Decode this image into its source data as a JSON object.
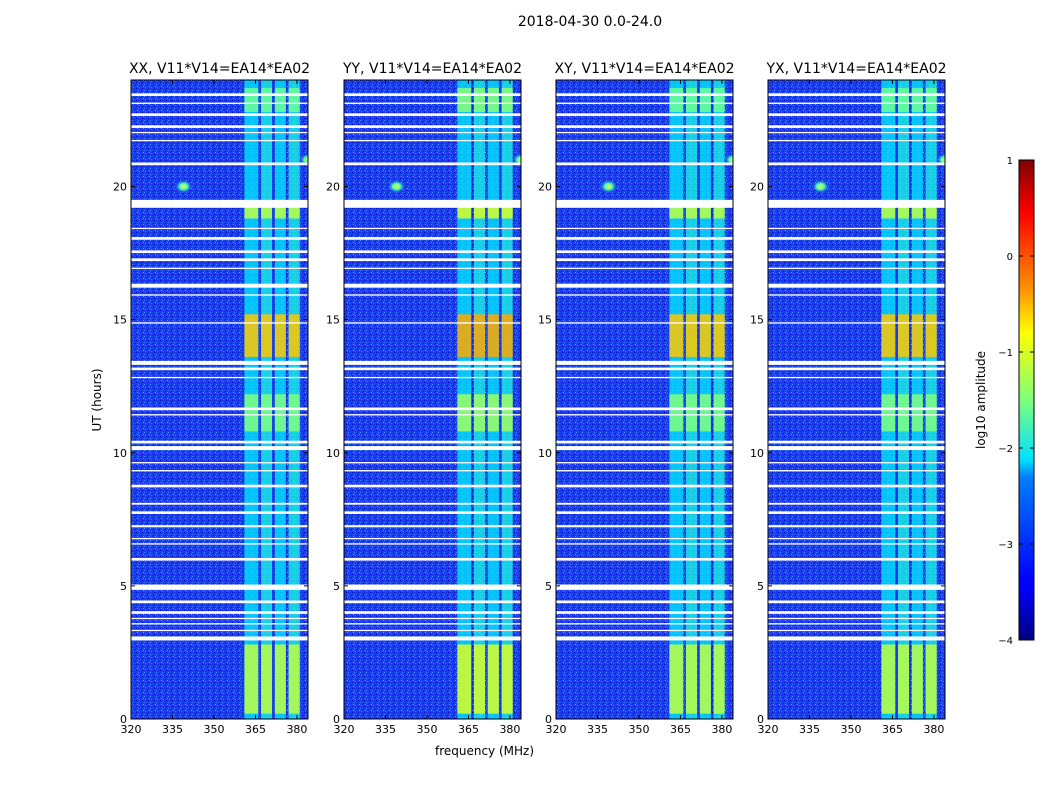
{
  "suptitle": "2018-04-30 0.0-24.0",
  "colormap": "jet",
  "chart_data": [
    {
      "type": "heatmap",
      "title": "XX, V11*V14=EA14*EA02",
      "xlabel": "",
      "ylabel": "UT (hours)",
      "xlim": [
        320,
        384
      ],
      "ylim": [
        0,
        24
      ],
      "xticks": [
        320,
        335,
        350,
        365,
        380
      ],
      "yticks": [
        0,
        5,
        10,
        15,
        20
      ],
      "ylabel_shown": true
    },
    {
      "type": "heatmap",
      "title": "YY, V11*V14=EA14*EA02",
      "xlabel": "frequency (MHz)",
      "ylabel": "",
      "xlim": [
        320,
        384
      ],
      "ylim": [
        0,
        24
      ],
      "xticks": [
        320,
        335,
        350,
        365,
        380
      ],
      "yticks": [
        0,
        5,
        10,
        15,
        20
      ],
      "ylabel_shown": false
    },
    {
      "type": "heatmap",
      "title": "XY, V11*V14=EA14*EA02",
      "xlabel": "",
      "ylabel": "",
      "xlim": [
        320,
        384
      ],
      "ylim": [
        0,
        24
      ],
      "xticks": [
        320,
        335,
        350,
        365,
        380
      ],
      "yticks": [
        0,
        5,
        10,
        15,
        20
      ],
      "ylabel_shown": false
    },
    {
      "type": "heatmap",
      "title": "YX, V11*V14=EA14*EA02",
      "xlabel": "",
      "ylabel": "",
      "xlim": [
        320,
        384
      ],
      "ylim": [
        0,
        24
      ],
      "xticks": [
        320,
        335,
        350,
        365,
        380
      ],
      "yticks": [
        0,
        5,
        10,
        15,
        20
      ],
      "ylabel_shown": false
    }
  ],
  "colorbar": {
    "label": "log10 amplitude",
    "range": [
      -4,
      1
    ],
    "ticks": [
      -4,
      -3,
      -2,
      -1,
      0,
      1
    ],
    "tick_labels": [
      "−4",
      "−3",
      "−2",
      "−1",
      "0",
      "1"
    ]
  },
  "features": {
    "flag_gaps_ut": [
      [
        2.95,
        3.1
      ],
      [
        3.3,
        3.35
      ],
      [
        3.55,
        3.6
      ],
      [
        3.75,
        3.8
      ],
      [
        3.95,
        4.05
      ],
      [
        4.35,
        4.45
      ],
      [
        4.85,
        5.05
      ],
      [
        5.95,
        6.05
      ],
      [
        6.55,
        6.6
      ],
      [
        6.75,
        6.8
      ],
      [
        7.2,
        7.28
      ],
      [
        7.7,
        7.8
      ],
      [
        8.05,
        8.12
      ],
      [
        8.7,
        8.8
      ],
      [
        9.3,
        9.35
      ],
      [
        9.6,
        9.65
      ],
      [
        10.1,
        10.25
      ],
      [
        10.35,
        10.45
      ],
      [
        11.4,
        11.45
      ],
      [
        11.6,
        11.7
      ],
      [
        12.8,
        12.85
      ],
      [
        13.1,
        13.2
      ],
      [
        13.3,
        13.45
      ],
      [
        14.85,
        14.9
      ],
      [
        15.9,
        15.95
      ],
      [
        16.2,
        16.35
      ],
      [
        16.9,
        16.95
      ],
      [
        17.2,
        17.3
      ],
      [
        17.5,
        17.6
      ],
      [
        18.0,
        18.1
      ],
      [
        18.4,
        18.45
      ],
      [
        19.2,
        19.5
      ],
      [
        20.8,
        20.9
      ],
      [
        21.7,
        21.75
      ],
      [
        22.0,
        22.05
      ],
      [
        22.2,
        22.3
      ],
      [
        22.65,
        22.75
      ],
      [
        23.1,
        23.15
      ],
      [
        23.4,
        23.5
      ]
    ],
    "rfi_bands_mhz": [
      [
        361,
        366
      ],
      [
        367,
        371
      ],
      [
        372,
        376
      ],
      [
        377,
        381
      ]
    ],
    "rfi_time_segments": [
      {
        "ut": [
          0.2,
          2.8
        ],
        "level": -1.2
      },
      {
        "ut": [
          13.6,
          15.2
        ],
        "level": -0.6
      },
      {
        "ut": [
          10.8,
          12.2
        ],
        "level": -1.5
      },
      {
        "ut": [
          18.8,
          19.3
        ],
        "level": -1.2
      },
      {
        "ut": [
          22.8,
          23.7
        ],
        "level": -1.6
      }
    ],
    "point_sources": [
      {
        "freq_mhz": 339,
        "ut": 20.0,
        "level": -1.0
      },
      {
        "freq_mhz": 384,
        "ut": 21.0,
        "level": -1.2
      }
    ]
  }
}
